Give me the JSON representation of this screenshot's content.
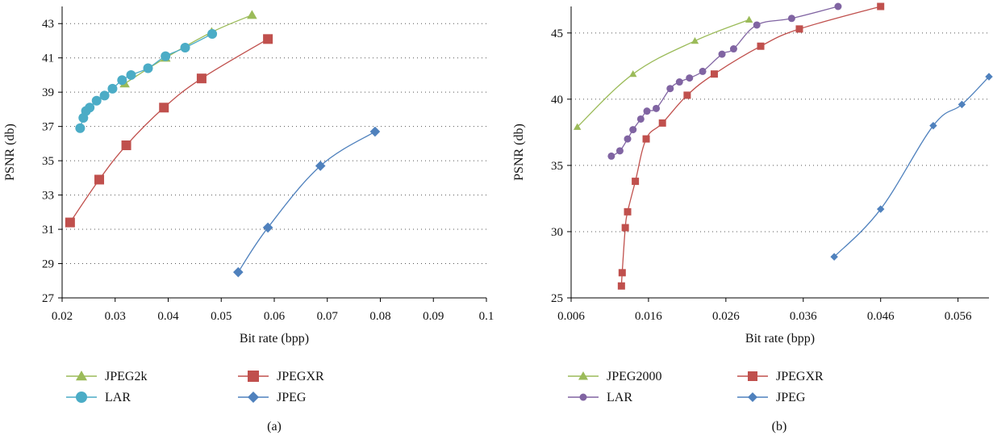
{
  "chart_data": [
    {
      "type": "line",
      "caption": "(a)",
      "xlabel": "Bit rate (bpp)",
      "ylabel": "PSNR (db)",
      "xlim": [
        0.02,
        0.1
      ],
      "ylim": [
        27,
        44
      ],
      "xticks": [
        "0.02",
        "0.03",
        "0.04",
        "0.05",
        "0.06",
        "0.07",
        "0.08",
        "0.09",
        "0.1"
      ],
      "xtick_values": [
        0.02,
        0.03,
        0.04,
        0.05,
        0.06,
        0.07,
        0.08,
        0.09,
        0.1
      ],
      "yticks": [
        "27",
        "29",
        "31",
        "33",
        "35",
        "37",
        "39",
        "41",
        "43"
      ],
      "ytick_values": [
        27,
        29,
        31,
        33,
        35,
        37,
        39,
        41,
        43
      ],
      "grid": "horizontal dotted",
      "legend_position": "bottom",
      "series": [
        {
          "name": "JPEG2k",
          "color": "#9bbb59",
          "marker": "triangle",
          "x": [
            0.0318,
            0.0395,
            0.0482,
            0.0558
          ],
          "y": [
            39.5,
            41.0,
            42.5,
            43.5
          ]
        },
        {
          "name": "JPEGXR",
          "color": "#c0504d",
          "marker": "square",
          "x": [
            0.0215,
            0.027,
            0.0321,
            0.0392,
            0.0463,
            0.0588
          ],
          "y": [
            31.4,
            33.9,
            35.9,
            38.1,
            39.8,
            42.1
          ]
        },
        {
          "name": "LAR",
          "color": "#4bacc6",
          "marker": "circle",
          "x": [
            0.0234,
            0.024,
            0.0245,
            0.0252,
            0.0265,
            0.028,
            0.0295,
            0.0313,
            0.033,
            0.0362,
            0.0395,
            0.0432,
            0.0483
          ],
          "y": [
            36.9,
            37.5,
            37.9,
            38.1,
            38.5,
            38.8,
            39.2,
            39.7,
            40.0,
            40.4,
            41.1,
            41.6,
            42.4
          ]
        },
        {
          "name": "JPEG",
          "color": "#4f81bd",
          "marker": "diamond",
          "x": [
            0.0532,
            0.0588,
            0.0687,
            0.079
          ],
          "y": [
            28.5,
            31.1,
            34.7,
            36.7
          ]
        }
      ]
    },
    {
      "type": "line",
      "caption": "(b)",
      "xlabel": "Bit rate (bpp)",
      "ylabel": "PSNR (db)",
      "xlim": [
        0.006,
        0.06
      ],
      "ylim": [
        25,
        47
      ],
      "xticks": [
        "0.006",
        "0.016",
        "0.026",
        "0.036",
        "0.046",
        "0.056"
      ],
      "xtick_values": [
        0.006,
        0.016,
        0.026,
        0.036,
        0.046,
        0.056
      ],
      "yticks": [
        "25",
        "30",
        "35",
        "40",
        "45"
      ],
      "ytick_values": [
        25,
        30,
        35,
        40,
        45
      ],
      "grid": "horizontal dotted",
      "legend_position": "bottom",
      "series": [
        {
          "name": "JPEG2000",
          "color": "#9bbb59",
          "marker": "triangle",
          "x": [
            0.0068,
            0.014,
            0.022,
            0.029
          ],
          "y": [
            37.9,
            41.9,
            44.4,
            46.0
          ]
        },
        {
          "name": "JPEGXR",
          "color": "#c0504d",
          "marker": "square",
          "x": [
            0.0125,
            0.0126,
            0.013,
            0.0133,
            0.0143,
            0.0157,
            0.0178,
            0.021,
            0.0245,
            0.0305,
            0.0355,
            0.046
          ],
          "y": [
            25.9,
            26.9,
            30.3,
            31.5,
            33.8,
            37.0,
            38.2,
            40.3,
            41.9,
            44.0,
            45.3,
            47.0
          ]
        },
        {
          "name": "LAR",
          "color": "#8064a2",
          "marker": "circle",
          "x": [
            0.0112,
            0.0123,
            0.0133,
            0.014,
            0.015,
            0.0158,
            0.017,
            0.0188,
            0.02,
            0.0213,
            0.023,
            0.0255,
            0.027,
            0.03,
            0.0345,
            0.0405
          ],
          "y": [
            35.7,
            36.1,
            37.0,
            37.7,
            38.5,
            39.1,
            39.3,
            40.8,
            41.3,
            41.6,
            42.1,
            43.4,
            43.8,
            45.6,
            46.1,
            47.0
          ]
        },
        {
          "name": "JPEG",
          "color": "#4f81bd",
          "marker": "diamond",
          "x": [
            0.04,
            0.046,
            0.0528,
            0.0565,
            0.06
          ],
          "y": [
            28.1,
            31.7,
            38.0,
            39.6,
            41.7
          ]
        }
      ]
    }
  ]
}
